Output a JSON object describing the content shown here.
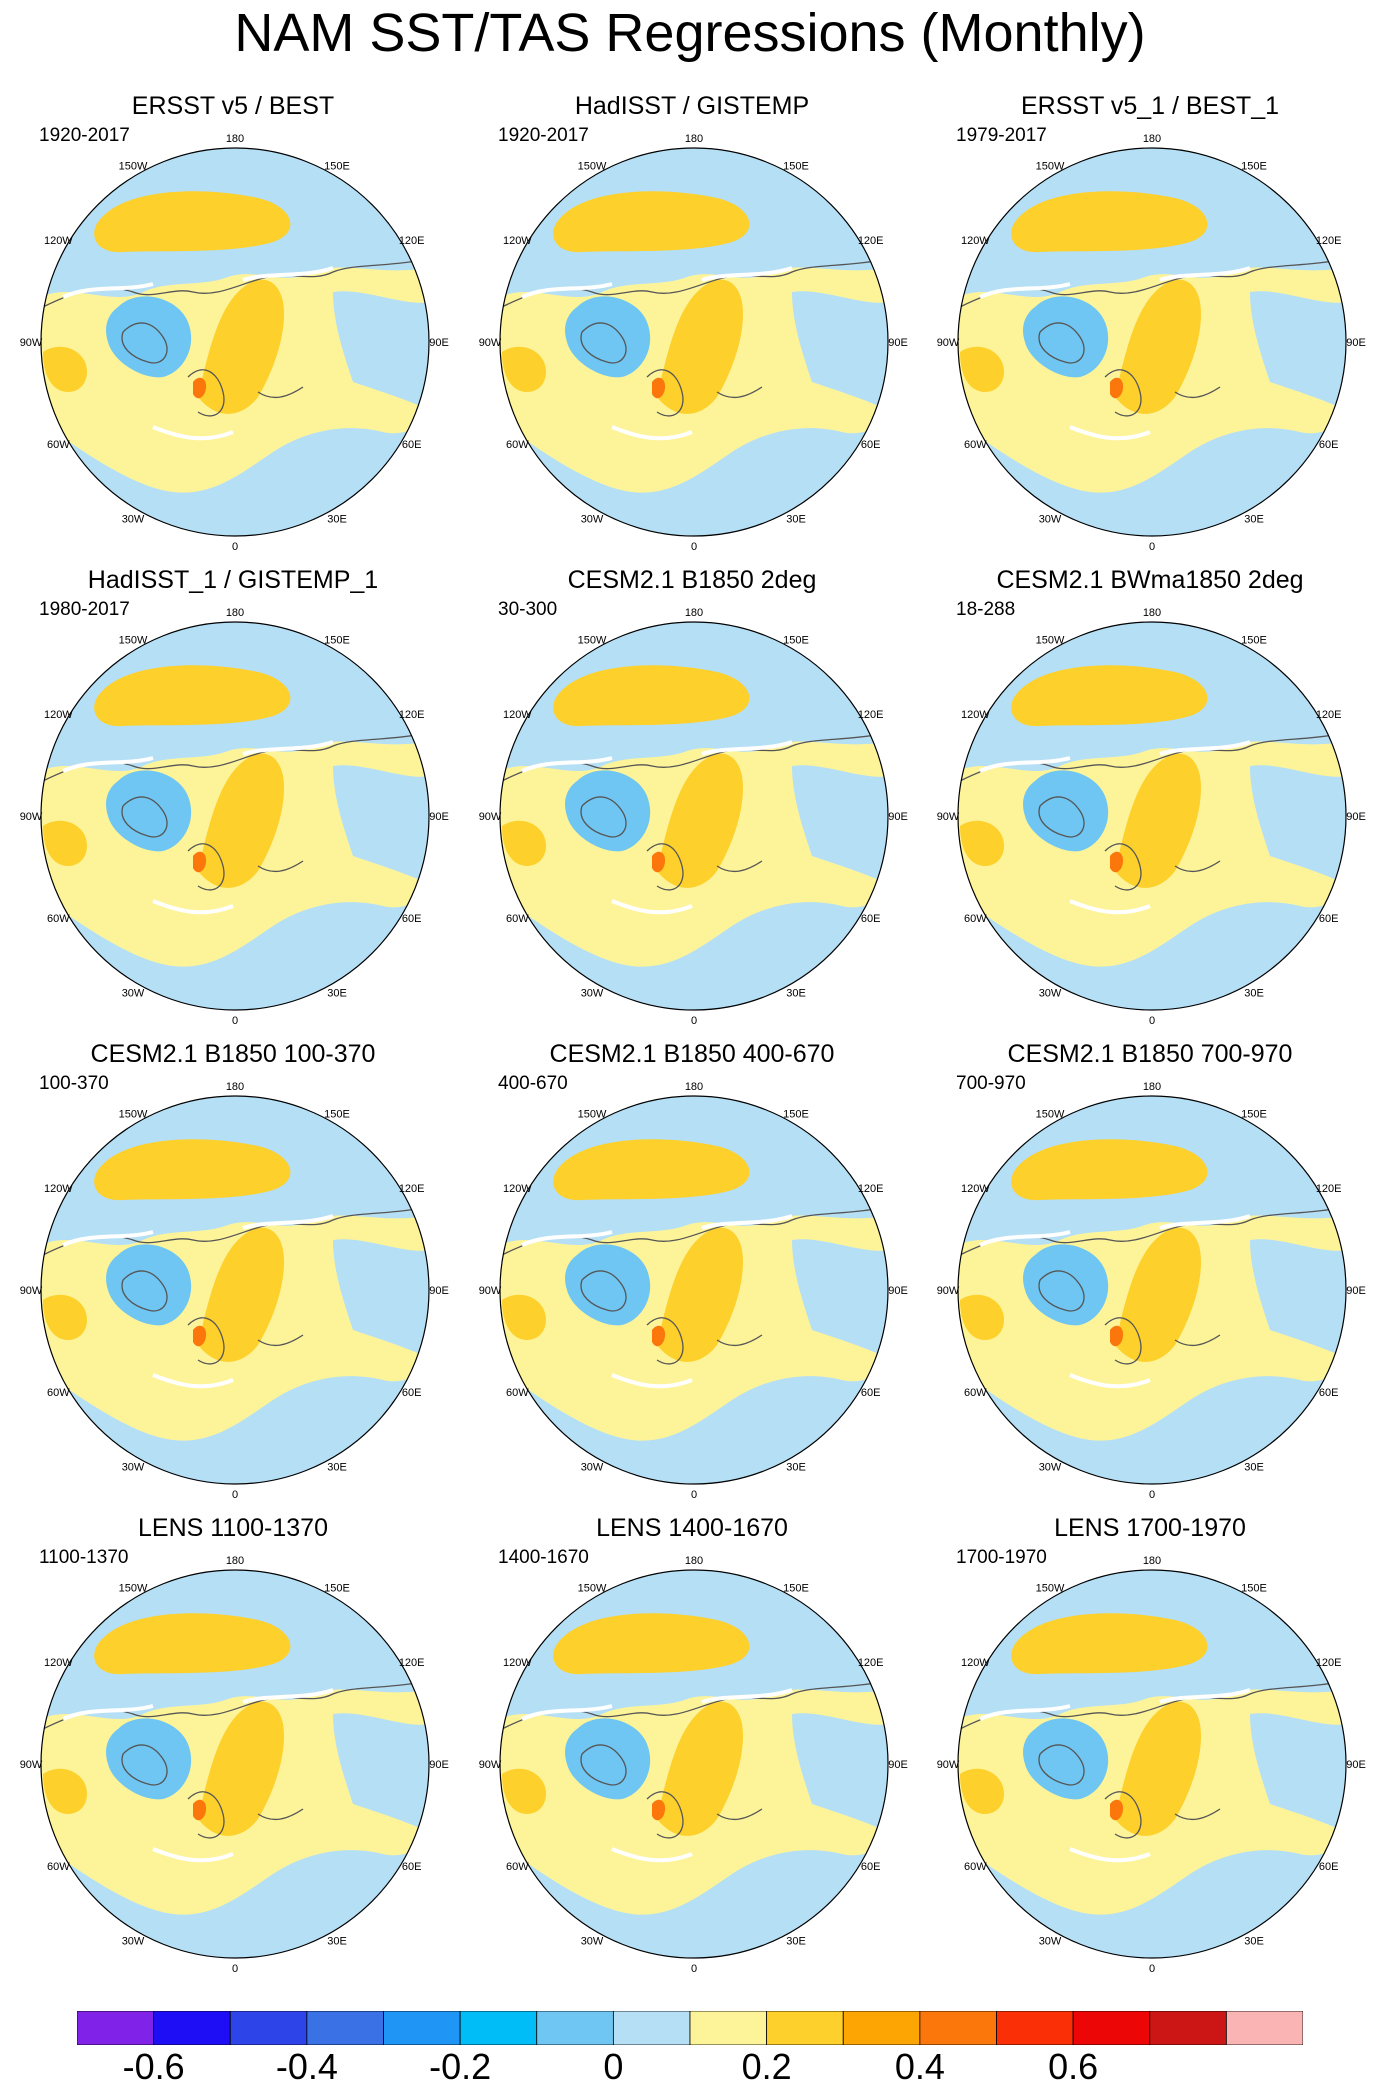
{
  "title": "NAM SST/TAS Regressions (Monthly)",
  "lon_labels": [
    "180",
    "150E",
    "120E",
    "90E",
    "60E",
    "30E",
    "0",
    "30W",
    "60W",
    "90W",
    "120W",
    "150W"
  ],
  "panels": [
    {
      "title": "ERSST v5 / BEST",
      "period": "1920-2017"
    },
    {
      "title": "HadISST / GISTEMP",
      "period": "1920-2017"
    },
    {
      "title": "ERSST v5_1 / BEST_1",
      "period": "1979-2017"
    },
    {
      "title": "HadISST_1 / GISTEMP_1",
      "period": "1980-2017"
    },
    {
      "title": "CESM2.1 B1850 2deg",
      "period": "30-300"
    },
    {
      "title": "CESM2.1 BWma1850 2deg",
      "period": "18-288"
    },
    {
      "title": "CESM2.1 B1850 100-370",
      "period": "100-370"
    },
    {
      "title": "CESM2.1 B1850 400-670",
      "period": "400-670"
    },
    {
      "title": "CESM2.1 B1850 700-970",
      "period": "700-970"
    },
    {
      "title": "LENS 1100-1370",
      "period": "1100-1370"
    },
    {
      "title": "LENS 1400-1670",
      "period": "1400-1670"
    },
    {
      "title": "LENS 1700-1970",
      "period": "1700-1970"
    }
  ],
  "colorbar": {
    "colors": [
      "#8022e8",
      "#1d0ef5",
      "#2d45e8",
      "#3a72e6",
      "#1f96f6",
      "#00bdf8",
      "#6fc6f2",
      "#b5dff5",
      "#fdf49a",
      "#fdd02c",
      "#fca503",
      "#fb770c",
      "#fa2f05",
      "#ec0606",
      "#cc1616",
      "#fbb4b4"
    ],
    "labels": [
      "-0.6",
      "-0.4",
      "-0.2",
      "0",
      "0.2",
      "0.4",
      "0.6"
    ]
  },
  "map_colors": {
    "ocean_neg": "#b5dff5",
    "pos_light": "#fdf49a",
    "pos_mid": "#fdd02c",
    "neg_mid": "#6fc6f2",
    "pos_strong": "#fb770c",
    "ice": "#ffffff",
    "coast": "#555555"
  }
}
